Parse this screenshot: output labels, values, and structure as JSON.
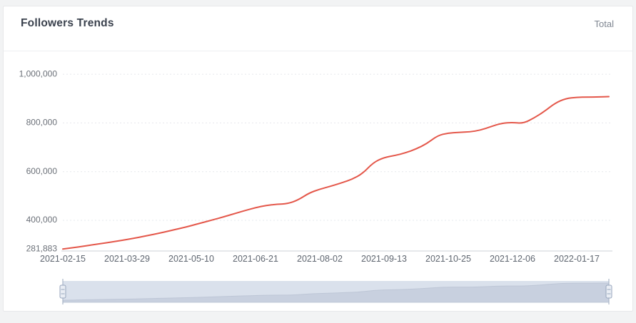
{
  "card": {
    "title": "Followers Trends",
    "series_label": "Total"
  },
  "chart_data": {
    "type": "line",
    "title": "Followers Trends",
    "legend": "Total",
    "legend_position": "top-right",
    "grid": true,
    "x": [
      "2021-02-15",
      "2021-02-22",
      "2021-03-01",
      "2021-03-08",
      "2021-03-15",
      "2021-03-22",
      "2021-03-29",
      "2021-04-05",
      "2021-04-12",
      "2021-04-19",
      "2021-04-26",
      "2021-05-03",
      "2021-05-10",
      "2021-05-17",
      "2021-05-24",
      "2021-05-31",
      "2021-06-07",
      "2021-06-14",
      "2021-06-21",
      "2021-06-28",
      "2021-07-05",
      "2021-07-12",
      "2021-07-19",
      "2021-07-26",
      "2021-08-02",
      "2021-08-09",
      "2021-08-16",
      "2021-08-23",
      "2021-08-30",
      "2021-09-06",
      "2021-09-13",
      "2021-09-20",
      "2021-09-27",
      "2021-10-04",
      "2021-10-11",
      "2021-10-18",
      "2021-10-25",
      "2021-11-01",
      "2021-11-08",
      "2021-11-15",
      "2021-11-22",
      "2021-11-29",
      "2021-12-06",
      "2021-12-13",
      "2021-12-20",
      "2021-12-27",
      "2022-01-03",
      "2022-01-10",
      "2022-01-17",
      "2022-01-24",
      "2022-01-31",
      "2022-02-07"
    ],
    "values": [
      281883,
      288000,
      294000,
      300500,
      307000,
      314000,
      321000,
      329000,
      338000,
      347000,
      357000,
      367000,
      378000,
      390000,
      402000,
      414000,
      427000,
      440000,
      452000,
      461000,
      466000,
      468000,
      484000,
      512000,
      528000,
      540000,
      553000,
      568000,
      592000,
      637000,
      658000,
      666000,
      677000,
      693000,
      715000,
      748000,
      759000,
      761000,
      763000,
      770000,
      785000,
      799000,
      802000,
      798000,
      820000,
      848000,
      882000,
      901000,
      905000,
      906000,
      907000,
      908000
    ],
    "x_tick_indices": [
      0,
      6,
      12,
      18,
      24,
      30,
      36,
      42,
      48
    ],
    "x_tick_labels": [
      "2021-02-15",
      "2021-03-29",
      "2021-05-10",
      "2021-06-21",
      "2021-08-02",
      "2021-09-13",
      "2021-10-25",
      "2021-12-06",
      "2022-01-17"
    ],
    "y_ticks": [
      {
        "value": 281883,
        "label": "281,883",
        "grid": false
      },
      {
        "value": 400000,
        "label": "400,000",
        "grid": true
      },
      {
        "value": 600000,
        "label": "600,000",
        "grid": true
      },
      {
        "value": 800000,
        "label": "800,000",
        "grid": true
      },
      {
        "value": 1000000,
        "label": "1,000,000",
        "grid": true
      }
    ],
    "ylim": [
      281883,
      1000000
    ],
    "colors": {
      "line": "#e4574a",
      "grid": "#e5e8ec",
      "axis_line": "#ccd1d7",
      "y_tick_text": "#6b7078",
      "x_tick_text": "#5f6670",
      "brush_track": "#e4e9f2",
      "brush_area_fill": "#cfd6e2",
      "brush_area_line": "#c2cad8",
      "brush_edge_line": "#a9b5c8",
      "brush_handle_fill": "#e9edf4",
      "brush_handle_stroke": "#98a6bd"
    }
  }
}
